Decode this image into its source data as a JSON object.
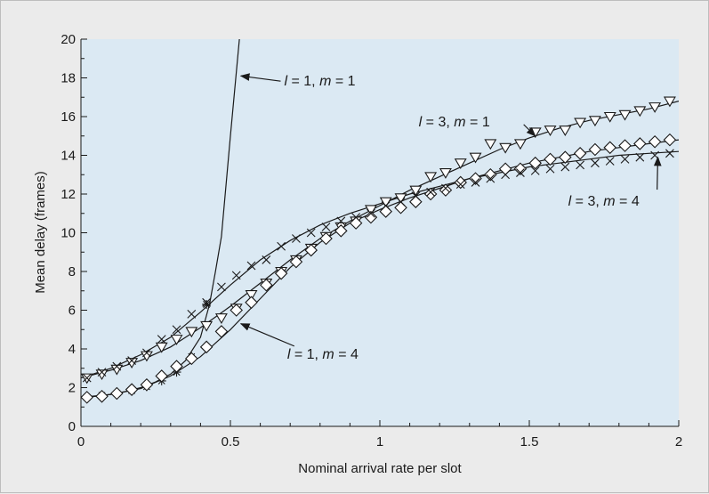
{
  "colors": {
    "page_background": "#ebebeb",
    "plot_background": "#dbe9f3",
    "axis": "#1a1a1a",
    "curve": "#1a1a1a",
    "marker_fill": "#ffffff"
  },
  "chart_data": {
    "type": "line",
    "title": "",
    "xlabel": "Nominal arrival rate per slot",
    "ylabel": "Mean delay (frames)",
    "xlim": [
      0,
      2
    ],
    "ylim": [
      0,
      20
    ],
    "x_ticks": [
      0,
      0.5,
      1,
      1.5,
      2
    ],
    "x_tick_labels": [
      "0",
      "0.5",
      "1",
      "1.5",
      "2"
    ],
    "y_ticks": [
      0,
      2,
      4,
      6,
      8,
      10,
      12,
      14,
      16,
      18,
      20
    ],
    "y_tick_labels": [
      "0",
      "2",
      "4",
      "6",
      "8",
      "10",
      "12",
      "14",
      "16",
      "18",
      "20"
    ],
    "grid": false,
    "legend": "none",
    "series": [
      {
        "id": "l1m1",
        "marker": "asterisk",
        "curve_x": [
          0,
          0.05,
          0.1,
          0.15,
          0.2,
          0.25,
          0.3,
          0.35,
          0.4,
          0.43,
          0.45,
          0.47,
          0.5,
          0.53
        ],
        "curve_y": [
          1.5,
          1.55,
          1.65,
          1.8,
          2.0,
          2.3,
          2.7,
          3.4,
          4.6,
          6.3,
          8.0,
          9.8,
          15.0,
          20.0
        ],
        "points_x": [
          0.02,
          0.07,
          0.12,
          0.17,
          0.22,
          0.27,
          0.32,
          0.37,
          0.42
        ],
        "points_y": [
          1.5,
          1.6,
          1.7,
          1.85,
          2.05,
          2.35,
          2.8,
          3.6,
          6.3
        ]
      },
      {
        "id": "l3m1",
        "marker": "triangle-down",
        "curve_x": [
          0,
          0.1,
          0.2,
          0.3,
          0.4,
          0.5,
          0.6,
          0.7,
          0.8,
          0.9,
          1.0,
          1.1,
          1.2,
          1.3,
          1.4,
          1.5,
          1.6,
          1.7,
          1.8,
          1.9,
          2.0
        ],
        "curve_y": [
          2.5,
          2.9,
          3.4,
          4.1,
          5.1,
          6.2,
          7.4,
          8.6,
          9.7,
          10.6,
          11.4,
          12.2,
          12.9,
          13.6,
          14.3,
          14.9,
          15.4,
          15.8,
          16.1,
          16.4,
          16.8
        ],
        "points_x": [
          0.02,
          0.07,
          0.12,
          0.17,
          0.22,
          0.27,
          0.32,
          0.37,
          0.42,
          0.47,
          0.52,
          0.57,
          0.62,
          0.67,
          0.72,
          0.77,
          0.82,
          0.87,
          0.92,
          0.97,
          1.02,
          1.07,
          1.12,
          1.17,
          1.22,
          1.27,
          1.32,
          1.37,
          1.42,
          1.47,
          1.52,
          1.57,
          1.62,
          1.67,
          1.72,
          1.77,
          1.82,
          1.87,
          1.92,
          1.97
        ],
        "points_y": [
          2.5,
          2.7,
          2.95,
          3.3,
          3.65,
          4.1,
          4.5,
          4.9,
          5.2,
          5.6,
          6.1,
          6.8,
          7.4,
          8.0,
          8.6,
          9.2,
          9.8,
          10.3,
          10.6,
          11.2,
          11.6,
          11.8,
          12.2,
          12.9,
          13.1,
          13.6,
          13.9,
          14.6,
          14.4,
          14.6,
          15.2,
          15.3,
          15.3,
          15.7,
          15.8,
          16.0,
          16.1,
          16.3,
          16.5,
          16.8
        ]
      },
      {
        "id": "l1m4",
        "marker": "diamond",
        "curve_x": [
          0,
          0.1,
          0.2,
          0.3,
          0.4,
          0.5,
          0.6,
          0.7,
          0.8,
          0.9,
          1.0,
          1.1,
          1.2,
          1.3,
          1.4,
          1.5,
          1.6,
          1.7,
          1.8,
          1.9,
          2.0
        ],
        "curve_y": [
          1.5,
          1.65,
          1.95,
          2.6,
          3.6,
          5.0,
          6.6,
          8.2,
          9.5,
          10.5,
          11.2,
          11.8,
          12.3,
          12.8,
          13.2,
          13.6,
          13.9,
          14.2,
          14.4,
          14.6,
          14.8
        ],
        "points_x": [
          0.02,
          0.07,
          0.12,
          0.17,
          0.22,
          0.27,
          0.32,
          0.37,
          0.42,
          0.47,
          0.52,
          0.57,
          0.62,
          0.67,
          0.72,
          0.77,
          0.82,
          0.87,
          0.92,
          0.97,
          1.02,
          1.07,
          1.12,
          1.17,
          1.22,
          1.27,
          1.32,
          1.37,
          1.42,
          1.47,
          1.52,
          1.57,
          1.62,
          1.67,
          1.72,
          1.77,
          1.82,
          1.87,
          1.92,
          1.97
        ],
        "points_y": [
          1.5,
          1.55,
          1.7,
          1.9,
          2.15,
          2.6,
          3.1,
          3.5,
          4.1,
          4.9,
          6.0,
          6.4,
          7.3,
          7.9,
          8.5,
          9.1,
          9.7,
          10.1,
          10.5,
          10.8,
          11.1,
          11.3,
          11.6,
          12.0,
          12.2,
          12.6,
          12.8,
          13.0,
          13.3,
          13.3,
          13.6,
          13.8,
          13.9,
          14.1,
          14.3,
          14.4,
          14.5,
          14.6,
          14.7,
          14.8
        ]
      },
      {
        "id": "l3m4",
        "marker": "cross",
        "curve_x": [
          0,
          0.1,
          0.2,
          0.3,
          0.4,
          0.5,
          0.6,
          0.7,
          0.8,
          0.9,
          1.0,
          1.1,
          1.2,
          1.3,
          1.4,
          1.5,
          1.6,
          1.7,
          1.8,
          1.9,
          2.0
        ],
        "curve_y": [
          2.5,
          3.0,
          3.7,
          4.6,
          5.9,
          7.3,
          8.6,
          9.6,
          10.4,
          11.0,
          11.5,
          12.0,
          12.4,
          12.8,
          13.1,
          13.4,
          13.6,
          13.8,
          14.0,
          14.1,
          14.2
        ],
        "points_x": [
          0.02,
          0.07,
          0.12,
          0.17,
          0.22,
          0.27,
          0.32,
          0.37,
          0.42,
          0.47,
          0.52,
          0.57,
          0.62,
          0.67,
          0.72,
          0.77,
          0.82,
          0.87,
          0.92,
          0.97,
          1.02,
          1.07,
          1.12,
          1.17,
          1.22,
          1.27,
          1.32,
          1.37,
          1.42,
          1.47,
          1.52,
          1.57,
          1.62,
          1.67,
          1.72,
          1.77,
          1.82,
          1.87,
          1.92,
          1.97
        ],
        "points_y": [
          2.5,
          2.8,
          3.1,
          3.4,
          3.8,
          4.5,
          5.0,
          5.8,
          6.4,
          7.2,
          7.8,
          8.3,
          8.6,
          9.3,
          9.7,
          10.0,
          10.3,
          10.6,
          10.8,
          11.0,
          11.4,
          11.6,
          11.9,
          12.1,
          12.3,
          12.5,
          12.6,
          12.8,
          13.0,
          13.1,
          13.2,
          13.3,
          13.4,
          13.5,
          13.6,
          13.7,
          13.8,
          13.9,
          14.0,
          14.1
        ]
      }
    ],
    "annotations": [
      {
        "id": "l1m1",
        "var1": "l",
        "val1": " = 1, ",
        "var2": "m",
        "val2": " = 1",
        "label_x": 0.68,
        "label_y": 17.6,
        "arrow_x": 0.535,
        "arrow_y": 18.1
      },
      {
        "id": "l3m1",
        "var1": "l",
        "val1": " = 3, ",
        "var2": "m",
        "val2": " = 1",
        "label_x": 1.13,
        "label_y": 15.5,
        "arrow_x": 1.52,
        "arrow_y": 15.0
      },
      {
        "id": "l1m4",
        "var1": "l",
        "val1": " = 1, ",
        "var2": "m",
        "val2": " = 4",
        "label_x": 0.69,
        "label_y": 3.5,
        "arrow_x": 0.535,
        "arrow_y": 5.3
      },
      {
        "id": "l3m4",
        "var1": "l",
        "val1": " = 3, ",
        "var2": "m",
        "val2": " = 4",
        "label_x": 1.63,
        "label_y": 11.4,
        "arrow_x": 1.93,
        "arrow_y": 13.9
      }
    ]
  }
}
